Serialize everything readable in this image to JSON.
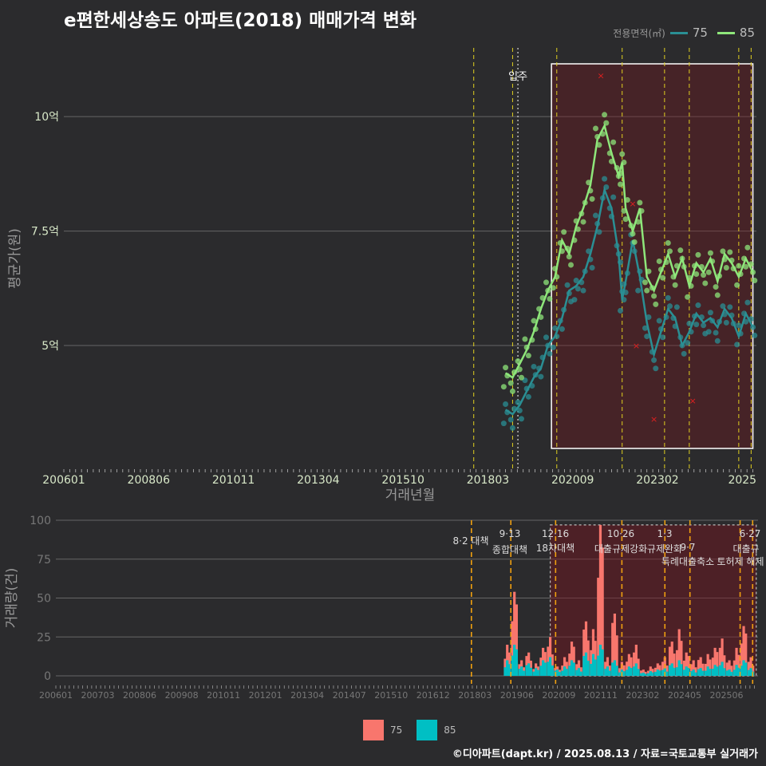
{
  "title": "e편한세상송도 아파트(2018) 매매가격 변화",
  "legend_top": {
    "label": "전용면적(㎡)",
    "series": [
      {
        "name": "75",
        "color": "#2a8f94"
      },
      {
        "name": "85",
        "color": "#8ee67a"
      }
    ]
  },
  "legend_bottom": {
    "series": [
      {
        "name": "75",
        "color": "#f8766d"
      },
      {
        "name": "85",
        "color": "#00bfc4"
      }
    ]
  },
  "footer": "©디아파트(dapt.kr) / 2025.08.13 / 자료=국토교통부 실거래가",
  "chart_data": [
    {
      "type": "line",
      "title": "e편한세상송도 아파트(2018) 매매가격 변화",
      "xlabel": "거래년월",
      "ylabel": "평균가(원)",
      "x_ticks": [
        "200601",
        "200806",
        "201011",
        "201304",
        "201510",
        "201803",
        "202009",
        "202302",
        "2025"
      ],
      "y_ticks": [
        {
          "value": 5.0,
          "label": "5억"
        },
        {
          "value": 7.5,
          "label": "7.5억"
        },
        {
          "value": 10.0,
          "label": "10억"
        }
      ],
      "ylim": [
        2.3,
        11.5
      ],
      "xlim": [
        2006.0,
        2025.6
      ],
      "annotation": "입주",
      "highlight_range": [
        2019.8,
        2025.5
      ],
      "series": [
        {
          "name": "75",
          "color": "#2a8f94",
          "x": [
            2018.5,
            2018.7,
            2018.9,
            2019.1,
            2019.3,
            2019.5,
            2019.7,
            2019.9,
            2020.1,
            2020.3,
            2020.5,
            2020.7,
            2020.9,
            2021.1,
            2021.3,
            2021.5,
            2021.7,
            2021.8,
            2021.9,
            2022.1,
            2022.3,
            2022.5,
            2022.7,
            2022.9,
            2023.1,
            2023.3,
            2023.5,
            2023.7,
            2023.9,
            2024.1,
            2024.3,
            2024.5,
            2024.7,
            2024.9,
            2025.1,
            2025.3,
            2025.5
          ],
          "y": [
            3.6,
            3.5,
            3.7,
            4.0,
            4.3,
            4.5,
            5.0,
            5.2,
            5.6,
            6.2,
            6.3,
            6.5,
            7.0,
            7.6,
            8.4,
            8.0,
            7.0,
            6.0,
            6.4,
            7.3,
            6.5,
            5.5,
            4.8,
            5.3,
            5.8,
            5.6,
            5.0,
            5.3,
            5.7,
            5.5,
            5.6,
            5.4,
            5.8,
            5.6,
            5.2,
            5.7,
            5.4
          ]
        },
        {
          "name": "85",
          "color": "#8ee67a",
          "x": [
            2018.5,
            2018.7,
            2018.9,
            2019.1,
            2019.3,
            2019.5,
            2019.7,
            2019.9,
            2020.1,
            2020.3,
            2020.5,
            2020.7,
            2020.9,
            2021.1,
            2021.3,
            2021.5,
            2021.7,
            2021.8,
            2021.9,
            2022.1,
            2022.3,
            2022.5,
            2022.7,
            2022.9,
            2023.1,
            2023.3,
            2023.5,
            2023.7,
            2023.9,
            2024.1,
            2024.3,
            2024.5,
            2024.7,
            2024.9,
            2025.1,
            2025.3,
            2025.5
          ],
          "y": [
            4.4,
            4.3,
            4.6,
            4.9,
            5.3,
            5.8,
            6.2,
            6.5,
            7.3,
            7.0,
            7.6,
            8.0,
            8.5,
            9.5,
            9.8,
            9.2,
            8.7,
            9.0,
            8.0,
            7.5,
            8.0,
            6.5,
            6.2,
            6.6,
            7.0,
            6.5,
            6.9,
            6.3,
            6.8,
            6.6,
            6.9,
            6.4,
            7.0,
            6.8,
            6.5,
            6.9,
            6.6
          ]
        }
      ],
      "outliers_x": [
        {
          "x": 2021.2,
          "y": 10.9
        },
        {
          "x": 2022.1,
          "y": 8.1
        },
        {
          "x": 2022.2,
          "y": 5.0
        },
        {
          "x": 2022.7,
          "y": 3.4
        },
        {
          "x": 2023.8,
          "y": 3.8
        }
      ]
    },
    {
      "type": "bar",
      "ylabel": "거래량(건)",
      "x_ticks": [
        "200601",
        "200703",
        "200806",
        "200908",
        "201011",
        "201201",
        "201304",
        "201407",
        "201510",
        "201612",
        "201803",
        "201906",
        "202009",
        "202111",
        "202302",
        "202405",
        "202506"
      ],
      "y_ticks": [
        0,
        25,
        50,
        75,
        100
      ],
      "ylim": [
        0,
        100
      ],
      "policy_annotations": [
        {
          "date": "8·2 대책",
          "x": 2017.6
        },
        {
          "date": "9·13",
          "label": "종합대책",
          "x": 2018.7
        },
        {
          "date": "12·16",
          "label": "18차대책",
          "x": 2019.95
        },
        {
          "date": "10·26",
          "label": "대출규제강화",
          "x": 2021.8
        },
        {
          "date": "1·3",
          "label": "규제완화",
          "x": 2023.0
        },
        {
          "date": "9·7",
          "label": "특례대출축소",
          "x": 2023.7
        },
        {
          "date": "토허제 해제",
          "x": 2025.1
        },
        {
          "date": "6·27",
          "label": "대출규",
          "x": 2025.45
        }
      ],
      "series": [
        {
          "name": "75",
          "color": "#f8766d",
          "x": [
            2018.6,
            2018.8,
            2019.0,
            2019.2,
            2019.4,
            2019.6,
            2019.8,
            2020.0,
            2020.2,
            2020.4,
            2020.6,
            2020.8,
            2021.0,
            2021.2,
            2021.4,
            2021.6,
            2021.8,
            2022.0,
            2022.2,
            2022.4,
            2022.6,
            2022.8,
            2023.0,
            2023.2,
            2023.4,
            2023.6,
            2023.8,
            2024.0,
            2024.2,
            2024.4,
            2024.6,
            2024.8,
            2025.0,
            2025.2,
            2025.4
          ],
          "y": [
            20,
            54,
            10,
            15,
            8,
            18,
            25,
            6,
            12,
            22,
            10,
            35,
            30,
            97,
            12,
            40,
            9,
            14,
            20,
            4,
            6,
            8,
            12,
            22,
            30,
            15,
            10,
            12,
            14,
            18,
            24,
            10,
            18,
            32,
            12
          ]
        },
        {
          "name": "85",
          "color": "#00bfc4",
          "x": [
            2018.6,
            2018.8,
            2019.0,
            2019.2,
            2019.4,
            2019.6,
            2019.8,
            2020.0,
            2020.2,
            2020.4,
            2020.6,
            2020.8,
            2021.0,
            2021.2,
            2021.4,
            2021.6,
            2021.8,
            2022.0,
            2022.2,
            2022.4,
            2022.6,
            2022.8,
            2023.0,
            2023.2,
            2023.4,
            2023.6,
            2023.8,
            2024.0,
            2024.2,
            2024.4,
            2024.6,
            2024.8,
            2025.0,
            2025.2,
            2025.4
          ],
          "y": [
            10,
            20,
            6,
            8,
            5,
            10,
            12,
            4,
            6,
            10,
            5,
            15,
            14,
            20,
            6,
            10,
            4,
            6,
            8,
            2,
            3,
            4,
            5,
            8,
            10,
            6,
            4,
            5,
            6,
            7,
            9,
            4,
            7,
            10,
            5
          ]
        }
      ]
    }
  ]
}
